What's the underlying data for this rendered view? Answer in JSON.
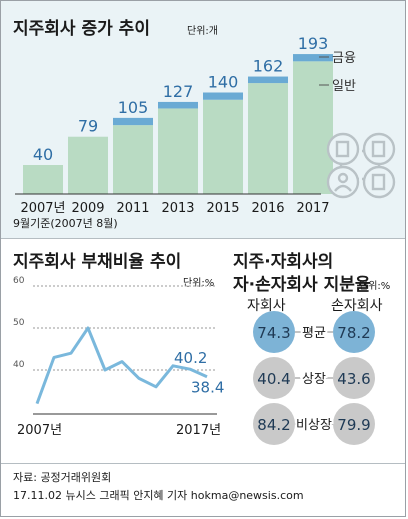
{
  "top": {
    "title": "지주회사 증가 추이",
    "unit": "단위:개",
    "legend": {
      "finance": "금융",
      "general": "일반"
    },
    "footnote": "9월기준(2007년 8월)"
  },
  "middle_left": {
    "title": "지주회사 부채비율 추이",
    "unit": "단위:%",
    "start_label": "2007년",
    "end_label": "2017년"
  },
  "middle_right": {
    "title_line1": "지주·자회사의",
    "title_line2": "자·손자회사 지분율",
    "unit": "단위:%",
    "col_sub": "자회사",
    "col_grand": "손자회사",
    "rows": [
      {
        "label": "평균",
        "sub": "74.3",
        "grand": "78.2"
      },
      {
        "label": "상장",
        "sub": "40.4",
        "grand": "43.6"
      },
      {
        "label": "비상장",
        "sub": "84.2",
        "grand": "79.9"
      }
    ]
  },
  "footer": {
    "source": "자료: 공정거래위원회",
    "credit": "17.11.02 뉴시스 그래픽 안지혜 기자 hokma@newsis.com"
  },
  "colors": {
    "general_bar": "#b9dbc3",
    "finance_bar": "#6aaad4",
    "value_text": "#2f6ea5",
    "line": "#7ab8dc",
    "top_panel_bg": "#eaf3f6",
    "circle_blue": "#7db3d6",
    "circle_gray": "#c9c9c9"
  },
  "icons": [
    "network-buildings-icon"
  ],
  "chart_data": [
    {
      "type": "bar",
      "title": "지주회사 증가 추이",
      "unit": "개",
      "categories": [
        "2007년",
        "2009",
        "2011",
        "2013",
        "2015",
        "2016",
        "2017"
      ],
      "totals": [
        40,
        79,
        105,
        127,
        140,
        162,
        193
      ],
      "value_labels": [
        "40",
        "79",
        "105",
        "127",
        "140",
        "162",
        "193"
      ],
      "series": [
        {
          "name": "일반",
          "values": [
            40,
            79,
            95,
            118,
            130,
            153,
            183
          ]
        },
        {
          "name": "금융",
          "values": [
            0,
            0,
            10,
            9,
            10,
            9,
            10
          ]
        }
      ],
      "ylim": [
        0,
        200
      ]
    },
    {
      "type": "line",
      "title": "지주회사 부채비율 추이",
      "unit": "%",
      "x": [
        "2007",
        "2008",
        "2009",
        "2010",
        "2011",
        "2012",
        "2013",
        "2014",
        "2015",
        "2016",
        "2017"
      ],
      "y": [
        32,
        43,
        44,
        50,
        40,
        42,
        38,
        36,
        41,
        40.2,
        38.4
      ],
      "labels": [
        "",
        "",
        "",
        "",
        "",
        "",
        "",
        "",
        "",
        "40.2",
        "38.4"
      ],
      "ylim": [
        30,
        60
      ],
      "yticks": [
        "60",
        "50",
        "40"
      ],
      "grid": true
    }
  ]
}
